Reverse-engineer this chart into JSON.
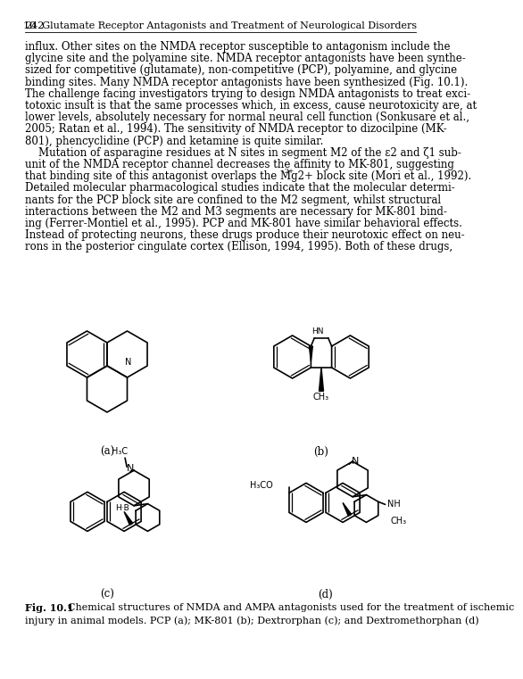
{
  "page_number": "242",
  "header": "10  Glutamate Receptor Antagonists and Treatment of Neurological Disorders",
  "body_text": [
    "influx. Other sites on the NMDA receptor susceptible to antagonism include the",
    "glycine site and the polyamine site. NMDA receptor antagonists have been synthe-",
    "sized for competitive (glutamate), non-competitive (PCP), polyamine, and glycine",
    "binding sites. Many NMDA receptor antagonists have been synthesized (Fig. 10.1).",
    "The challenge facing investigators trying to design NMDA antagonists to treat exci-",
    "totoxic insult is that the same processes which, in excess, cause neurotoxicity are, at",
    "lower levels, absolutely necessary for normal neural cell function (Sonkusare et al.,",
    "2005; Ratan et al., 1994). The sensitivity of NMDA receptor to dizocilpine (MK-",
    "801), phencyclidine (PCP) and ketamine is quite similar.",
    "    Mutation of asparagine residues at N sites in segment M2 of the ε2 and ζ1 sub-",
    "unit of the NMDA receptor channel decreases the affinity to MK-801, suggesting",
    "that binding site of this antagonist overlaps the Mg2+ block site (Mori et al., 1992).",
    "Detailed molecular pharmacological studies indicate that the molecular determi-",
    "nants for the PCP block site are confined to the M2 segment, whilst structural",
    "interactions between the M2 and M3 segments are necessary for MK-801 bind-",
    "ing (Ferrer-Montiel et al., 1995). PCP and MK-801 have similar behavioral effects.",
    "Instead of protecting neurons, these drugs produce their neurotoxic effect on neu-",
    "rons in the posterior cingulate cortex (Ellison, 1994, 1995). Both of these drugs,"
  ],
  "mg2plus_line": 11,
  "label_a": "(a)",
  "label_b": "(b)",
  "label_c": "(c)",
  "label_d": "(d)",
  "caption_bold": "Fig. 10.1",
  "caption_rest": "  Chemical structures of NMDA and AMPA antagonists used for the treatment of ischemic",
  "caption_line2": "injury in animal models. PCP (a); MK-801 (b); Dextrorphan (c); and Dextromethorphan (d)",
  "bg_color": "#ffffff",
  "text_color": "#000000",
  "lw": 1.2
}
